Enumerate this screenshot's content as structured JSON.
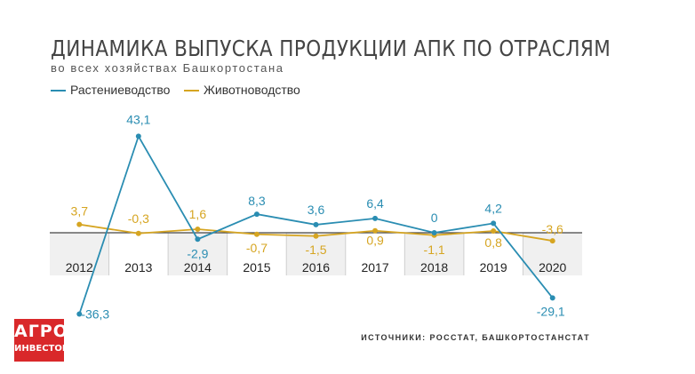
{
  "title": "ДИНАМИКА ВЫПУСКА ПРОДУКЦИИ АПК ПО ОТРАСЛЯМ",
  "subtitle": "во всех хозяйствах Башкортостана",
  "source": "ИСТОЧНИКИ: РОССТАТ, БАШКОРТОСТАНСТАТ",
  "logo": {
    "top": "АГРО",
    "bottom": "ИНВЕСТОР",
    "color": "#d9282a"
  },
  "chart_data": {
    "type": "line",
    "categories": [
      "2012",
      "2013",
      "2014",
      "2015",
      "2016",
      "2017",
      "2018",
      "2019",
      "2020"
    ],
    "series": [
      {
        "name": "Растениеводство",
        "color": "#2a8db2",
        "values": [
          -36.3,
          43.1,
          -2.9,
          8.3,
          3.6,
          6.4,
          0,
          4.2,
          -29.1
        ],
        "labels": [
          "-36,3",
          "43,1",
          "-2,9",
          "8,3",
          "3,6",
          "6,4",
          "0",
          "4,2",
          "-29,1"
        ]
      },
      {
        "name": "Животноводство",
        "color": "#d6a521",
        "values": [
          3.7,
          -0.3,
          1.6,
          -0.7,
          -1.5,
          0.9,
          -1.1,
          0.8,
          -3.6
        ],
        "labels": [
          "3,7",
          "-0,3",
          "1,6",
          "-0,7",
          "-1,5",
          "0,9",
          "-1,1",
          "0,8",
          "-3,6"
        ]
      }
    ],
    "grid": false,
    "legend": "top-left"
  }
}
